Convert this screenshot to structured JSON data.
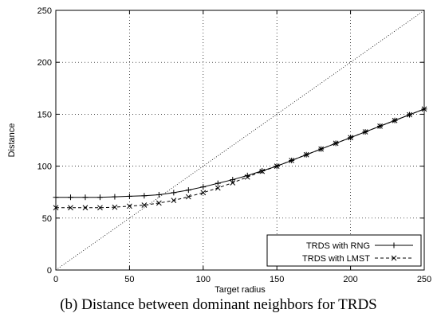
{
  "caption": "(b) Distance between dominant neighbors for TRDS",
  "chart_data": {
    "type": "line",
    "xlabel": "Target radius",
    "ylabel": "Distance",
    "xlim": [
      0,
      250
    ],
    "ylim": [
      0,
      250
    ],
    "xticks": [
      0,
      50,
      100,
      150,
      200,
      250
    ],
    "yticks": [
      0,
      50,
      100,
      150,
      200,
      250
    ],
    "grid": true,
    "legend_position": "bottom-right",
    "x": [
      0,
      10,
      20,
      30,
      40,
      50,
      60,
      70,
      80,
      90,
      100,
      110,
      120,
      130,
      140,
      150,
      160,
      170,
      180,
      190,
      200,
      210,
      220,
      230,
      240,
      250
    ],
    "series": [
      {
        "name": "TRDS with RNG",
        "marker": "+",
        "line_style": "solid",
        "values": [
          70,
          70,
          70,
          70,
          70.5,
          71,
          71.5,
          72.5,
          74.5,
          77,
          80,
          83.5,
          87,
          91,
          95.5,
          100,
          105.5,
          111,
          116.5,
          122,
          127.5,
          133,
          138.5,
          144,
          149.5,
          155
        ]
      },
      {
        "name": "TRDS with LMST",
        "marker": "x",
        "line_style": "dashed",
        "values": [
          60,
          60,
          60,
          60,
          60.5,
          61.5,
          62.5,
          64.5,
          67,
          70.5,
          74.5,
          79,
          84,
          89.5,
          95,
          100,
          105.5,
          111,
          116.5,
          122,
          127.5,
          133,
          138.5,
          144,
          149.5,
          155
        ]
      },
      {
        "name": "",
        "style": "dotted",
        "x": [
          0,
          250
        ],
        "values": [
          0,
          250
        ]
      }
    ]
  }
}
